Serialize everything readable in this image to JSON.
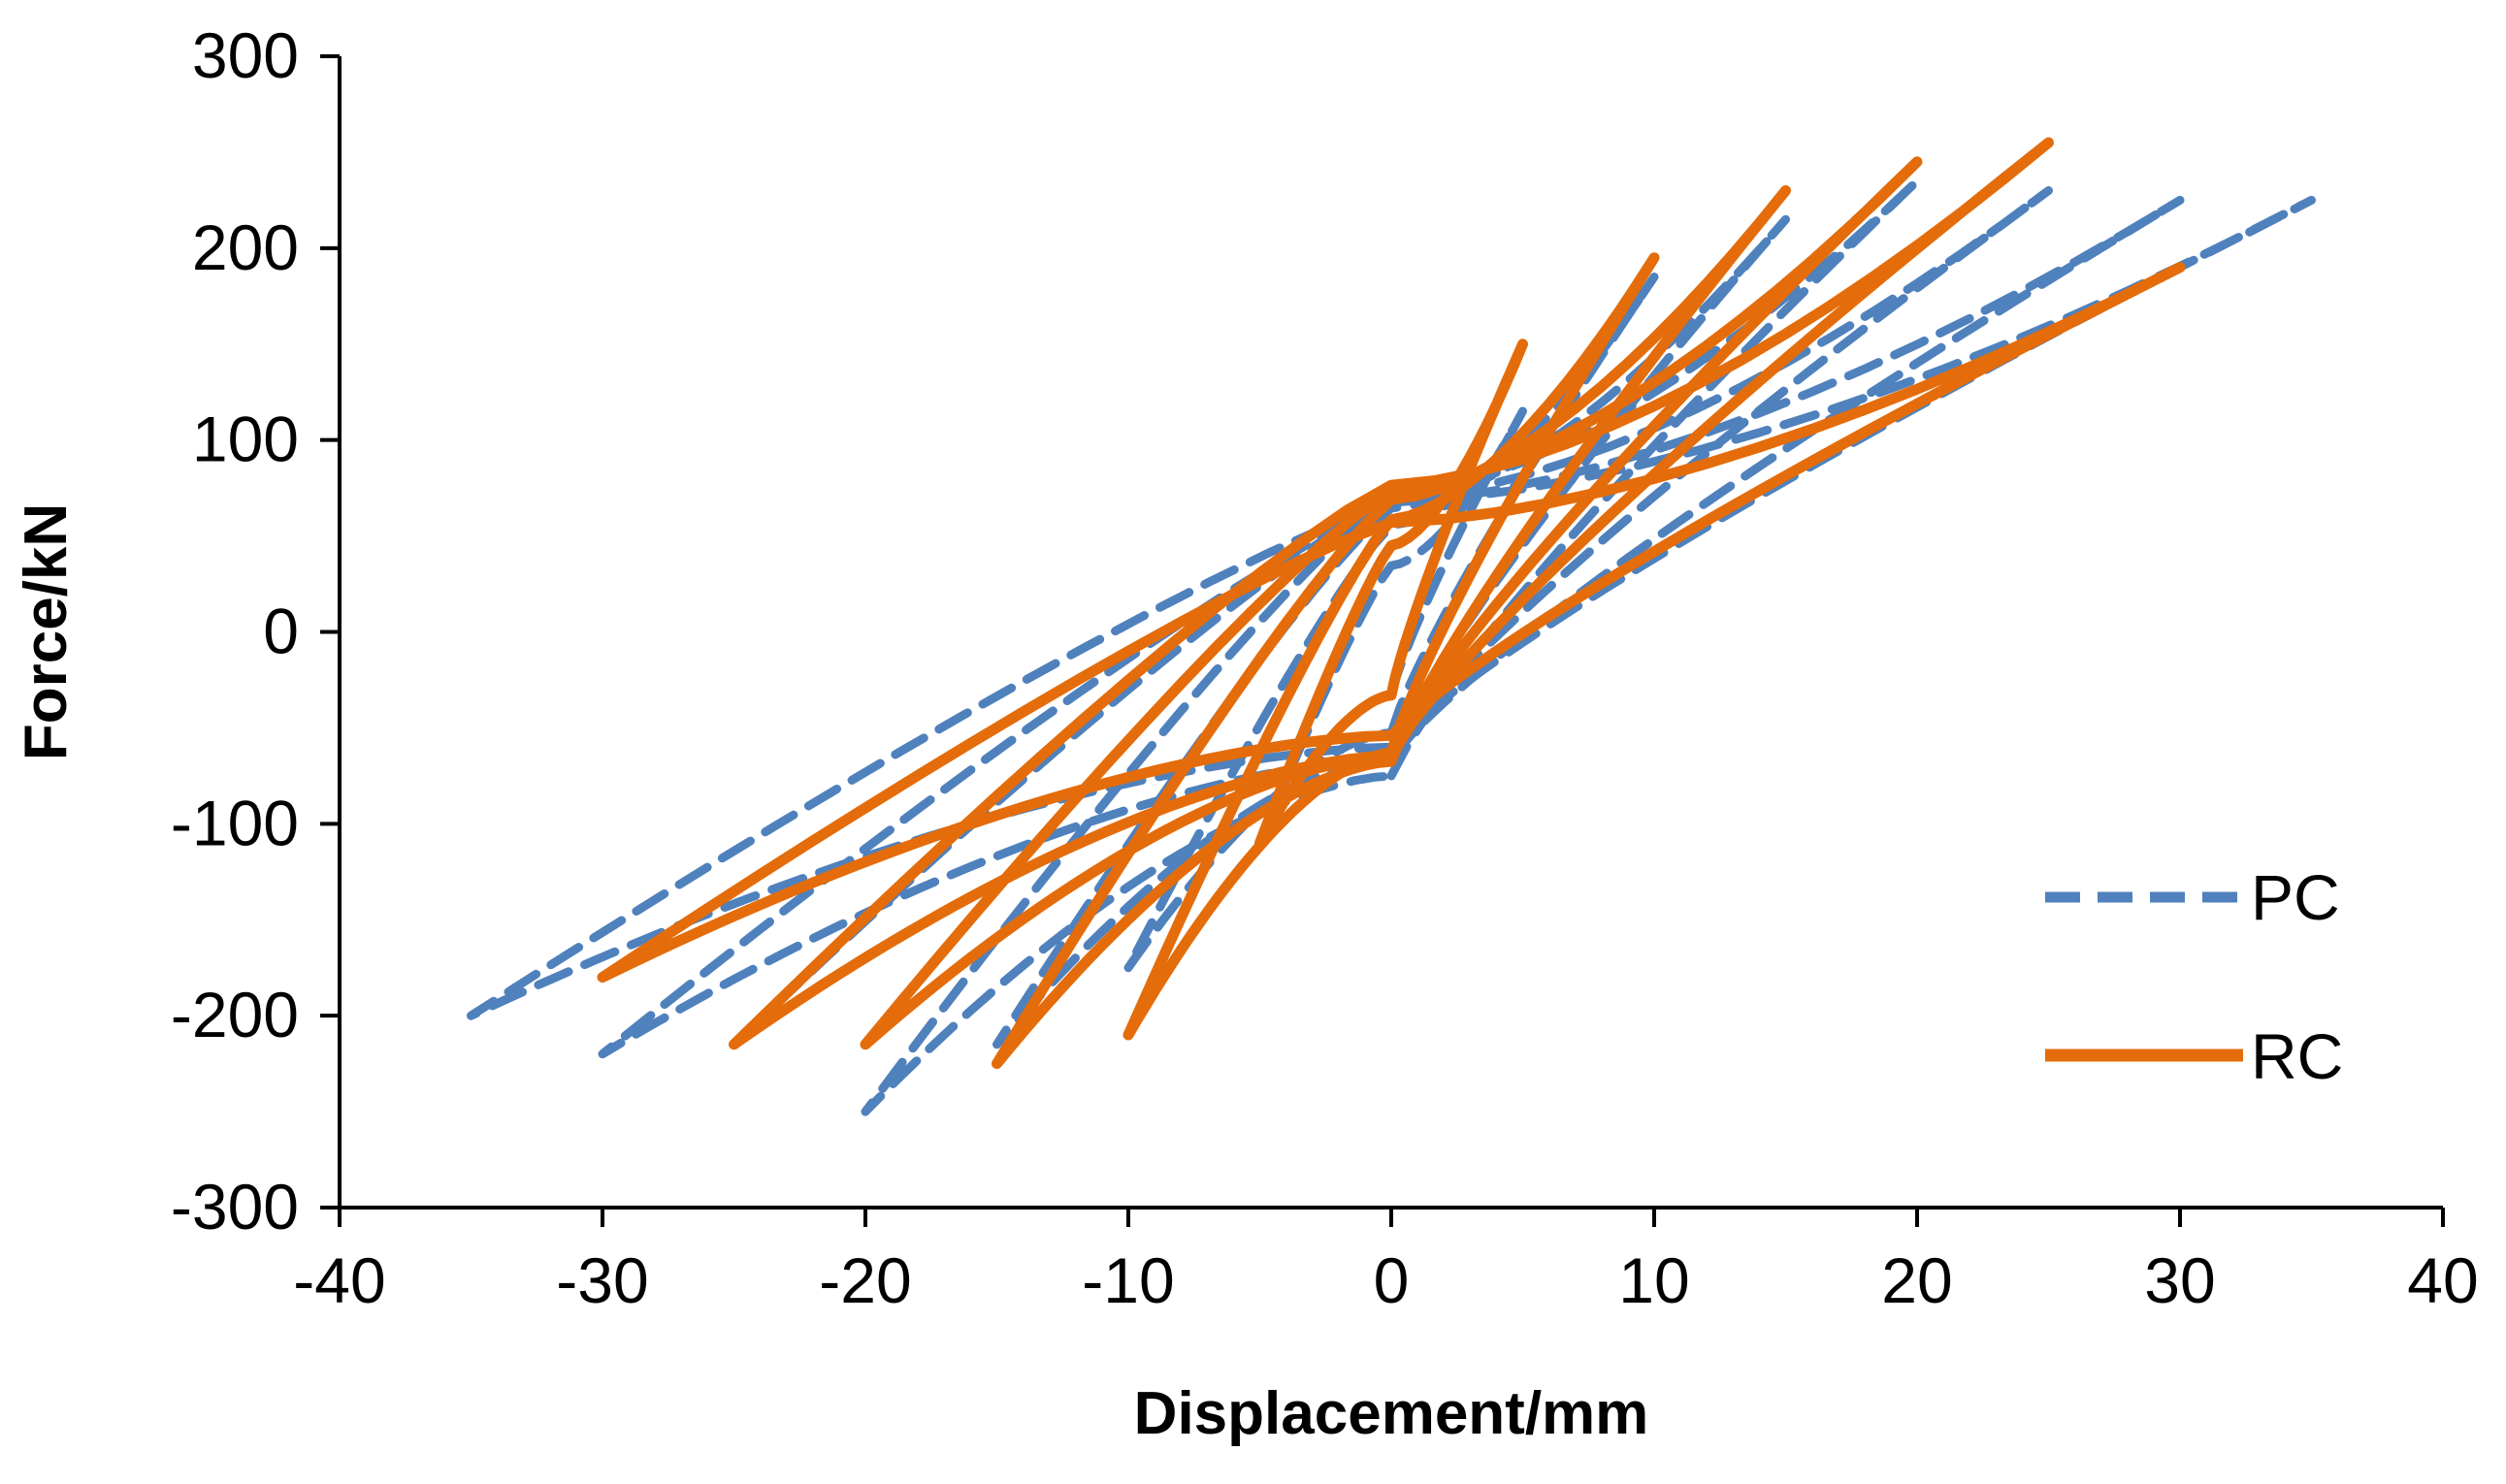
{
  "chart_data": {
    "type": "line",
    "title": "",
    "xlabel": "Displacement/mm",
    "ylabel": "Force/kN",
    "xlim": [
      -40,
      40
    ],
    "ylim": [
      -300,
      300
    ],
    "x_ticks": [
      "-40",
      "-30",
      "-20",
      "-10",
      "0",
      "10",
      "20",
      "30",
      "40"
    ],
    "y_ticks": [
      "300",
      "200",
      "100",
      "0",
      "-100",
      "-200",
      "-300"
    ],
    "grid": false,
    "legend_position": "lower-right",
    "series": [
      {
        "name": "PC",
        "color": "#4f81bd",
        "style": "dashed",
        "loops": [
          {
            "max_x": 5,
            "max_y": 115,
            "min_x": -5,
            "min_y": -110
          },
          {
            "max_x": 10,
            "max_y": 185,
            "min_x": -10,
            "min_y": -175
          },
          {
            "max_x": 15,
            "max_y": 215,
            "min_x": -15,
            "min_y": -215
          },
          {
            "max_x": 20,
            "max_y": 235,
            "min_x": -20,
            "min_y": -250
          },
          {
            "max_x": 25,
            "max_y": 230,
            "min_x": -25,
            "min_y": -215
          },
          {
            "max_x": 30,
            "max_y": 225,
            "min_x": -30,
            "min_y": -220
          },
          {
            "max_x": 35,
            "max_y": 225,
            "min_x": -35,
            "min_y": -200
          }
        ]
      },
      {
        "name": "RC",
        "color": "#e46c0a",
        "style": "solid",
        "loops": [
          {
            "max_x": 5,
            "max_y": 150,
            "min_x": -5,
            "min_y": -110
          },
          {
            "max_x": 10,
            "max_y": 195,
            "min_x": -10,
            "min_y": -210
          },
          {
            "max_x": 15,
            "max_y": 230,
            "min_x": -15,
            "min_y": -225
          },
          {
            "max_x": 20,
            "max_y": 245,
            "min_x": -20,
            "min_y": -215
          },
          {
            "max_x": 25,
            "max_y": 255,
            "min_x": -25,
            "min_y": -215
          },
          {
            "max_x": 30,
            "max_y": 190,
            "min_x": -30,
            "min_y": -180
          }
        ]
      }
    ]
  }
}
